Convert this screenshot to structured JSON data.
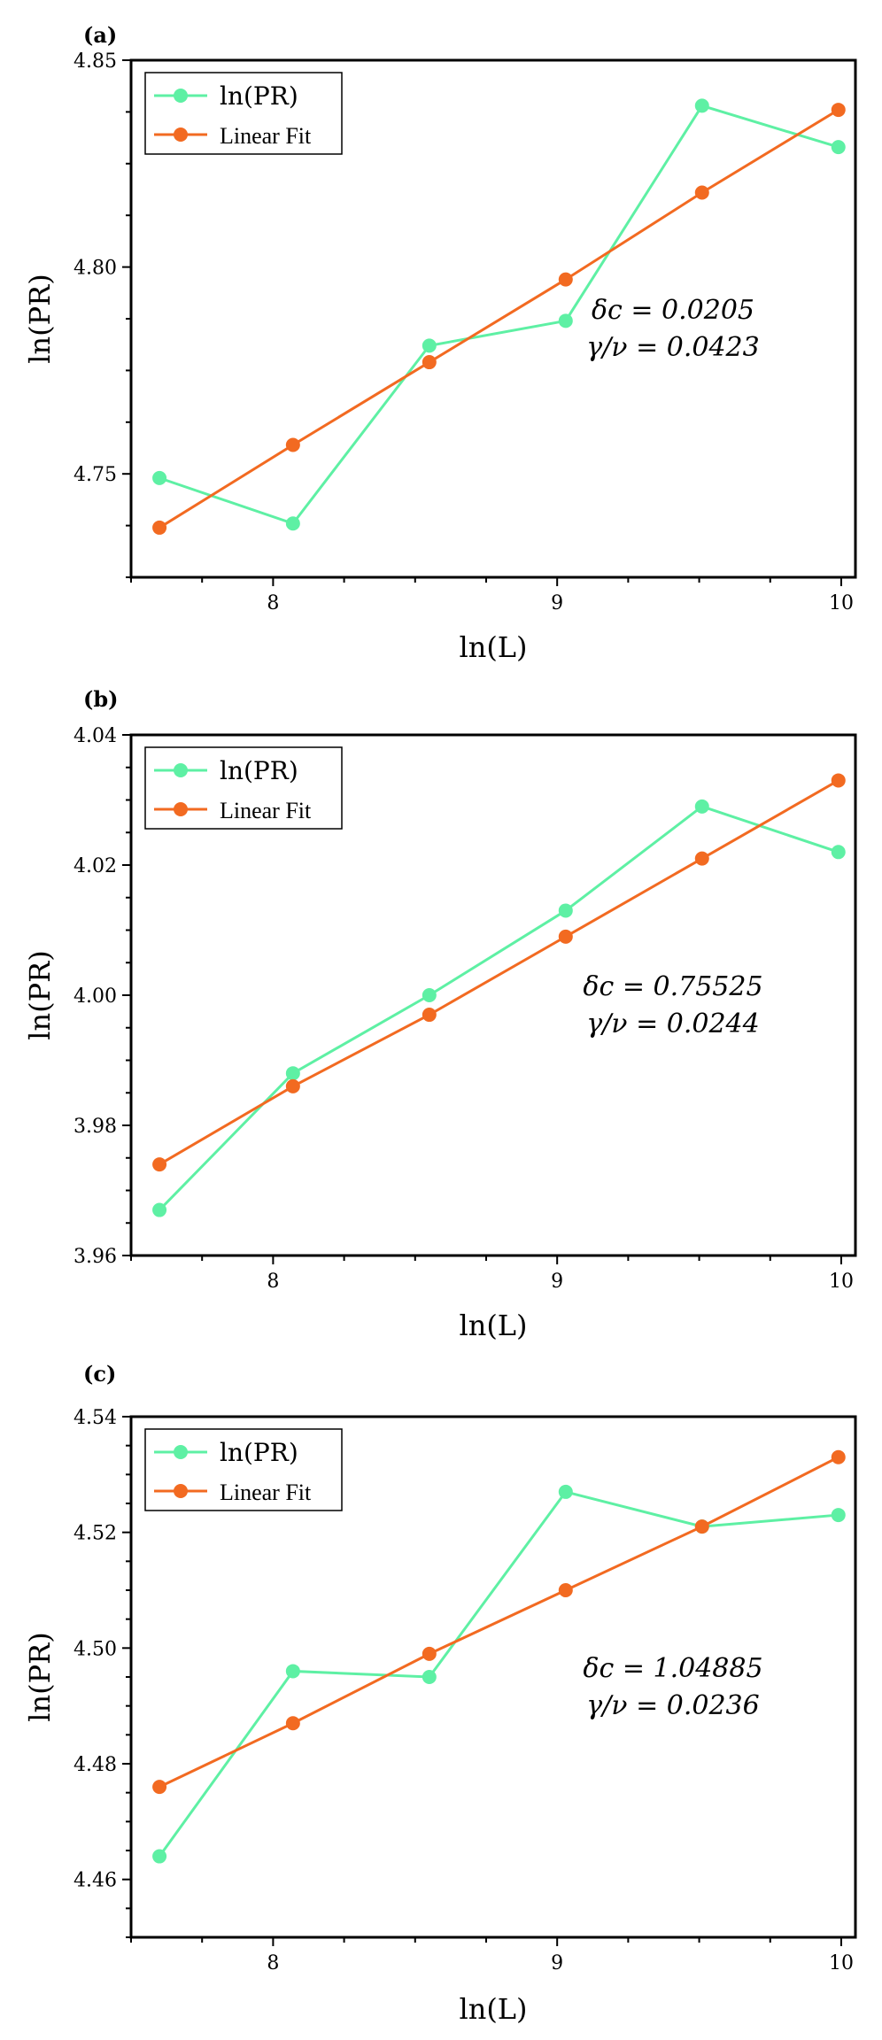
{
  "colors": {
    "data": "#5EF0A4",
    "fit": "#F26A21",
    "axis": "#000000"
  },
  "chart_data": [
    {
      "type": "line",
      "panel_label": "(a)",
      "xlabel": "ln(L)",
      "ylabel": "ln(PR)",
      "xlim": [
        7.5,
        10.05
      ],
      "ylim": [
        4.725,
        4.85
      ],
      "xticks": [
        8,
        9,
        10
      ],
      "yticks": [
        4.75,
        4.8,
        4.85
      ],
      "ytick_labels": [
        "4.75",
        "4.80",
        "4.85"
      ],
      "x": [
        7.6,
        8.07,
        8.55,
        9.03,
        9.51,
        9.99
      ],
      "series": [
        {
          "name": "ln(PR)",
          "values": [
            4.749,
            4.738,
            4.781,
            4.787,
            4.839,
            4.829
          ]
        },
        {
          "name": "Linear Fit",
          "values": [
            4.737,
            4.757,
            4.777,
            4.797,
            4.818,
            4.838
          ]
        }
      ],
      "annotation": [
        "δc = 0.0205",
        "γ/ν = 0.0423"
      ]
    },
    {
      "type": "line",
      "panel_label": "(b)",
      "xlabel": "ln(L)",
      "ylabel": "ln(PR)",
      "xlim": [
        7.5,
        10.05
      ],
      "ylim": [
        3.96,
        4.04
      ],
      "xticks": [
        8,
        9,
        10
      ],
      "yticks": [
        3.96,
        3.98,
        4.0,
        4.02,
        4.04
      ],
      "ytick_labels": [
        "3.96",
        "3.98",
        "4.00",
        "4.02",
        "4.04"
      ],
      "x": [
        7.6,
        8.07,
        8.55,
        9.03,
        9.51,
        9.99
      ],
      "series": [
        {
          "name": "ln(PR)",
          "values": [
            3.967,
            3.988,
            4.0,
            4.013,
            4.029,
            4.022
          ]
        },
        {
          "name": "Linear Fit",
          "values": [
            3.974,
            3.986,
            3.997,
            4.009,
            4.021,
            4.033
          ]
        }
      ],
      "annotation": [
        "δc = 0.75525",
        "γ/ν = 0.0244"
      ]
    },
    {
      "type": "line",
      "panel_label": "(c)",
      "xlabel": "ln(L)",
      "ylabel": "ln(PR)",
      "xlim": [
        7.5,
        10.05
      ],
      "ylim": [
        4.45,
        4.54
      ],
      "xticks": [
        8,
        9,
        10
      ],
      "yticks": [
        4.46,
        4.48,
        4.5,
        4.52,
        4.54
      ],
      "ytick_labels": [
        "4.46",
        "4.48",
        "4.50",
        "4.52",
        "4.54"
      ],
      "x": [
        7.6,
        8.07,
        8.55,
        9.03,
        9.51,
        9.99
      ],
      "series": [
        {
          "name": "ln(PR)",
          "values": [
            4.464,
            4.496,
            4.495,
            4.527,
            4.521,
            4.523
          ]
        },
        {
          "name": "Linear Fit",
          "values": [
            4.476,
            4.487,
            4.499,
            4.51,
            4.521,
            4.533
          ]
        }
      ],
      "annotation": [
        "δc = 1.04885",
        "γ/ν = 0.0236"
      ]
    }
  ]
}
